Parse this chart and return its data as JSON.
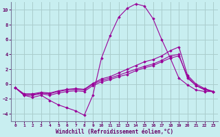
{
  "xlabel": "Windchill (Refroidissement éolien,°C)",
  "background_color": "#c8eef0",
  "grid_color": "#aacccc",
  "line_color": "#990099",
  "xlim": [
    -0.5,
    23.5
  ],
  "ylim": [
    -5,
    11
  ],
  "yticks": [
    -4,
    -2,
    0,
    2,
    4,
    6,
    8,
    10
  ],
  "xticks": [
    0,
    1,
    2,
    3,
    4,
    5,
    6,
    7,
    8,
    9,
    10,
    11,
    12,
    13,
    14,
    15,
    16,
    17,
    18,
    19,
    20,
    21,
    22,
    23
  ],
  "series": [
    {
      "x": [
        0,
        1,
        2,
        3,
        4,
        5,
        6,
        7,
        8,
        9,
        10,
        11,
        12,
        13,
        14,
        15,
        16,
        17,
        18,
        19,
        20,
        21,
        22,
        23
      ],
      "y": [
        -0.5,
        -1.5,
        -1.8,
        -1.5,
        -2.2,
        -2.8,
        -3.2,
        -3.6,
        -4.2,
        -1.5,
        3.5,
        6.5,
        9.0,
        10.2,
        10.8,
        10.5,
        8.8,
        6.0,
        3.5,
        0.8,
        -0.1,
        -0.8,
        -1.0,
        -1.0
      ]
    },
    {
      "x": [
        0,
        1,
        2,
        3,
        4,
        5,
        6,
        7,
        8,
        9,
        10,
        11,
        12,
        13,
        14,
        15,
        16,
        17,
        18,
        19,
        20,
        21,
        22,
        23
      ],
      "y": [
        -0.5,
        -1.5,
        -1.5,
        -1.3,
        -1.5,
        -1.2,
        -1.0,
        -0.9,
        -1.0,
        -0.2,
        0.3,
        0.6,
        1.0,
        1.3,
        1.8,
        2.2,
        2.5,
        3.0,
        3.5,
        3.8,
        1.0,
        -0.2,
        -0.8,
        -1.0
      ]
    },
    {
      "x": [
        0,
        1,
        2,
        3,
        4,
        5,
        6,
        7,
        8,
        9,
        10,
        11,
        12,
        13,
        14,
        15,
        16,
        17,
        18,
        19,
        20,
        21,
        22,
        23
      ],
      "y": [
        -0.5,
        -1.4,
        -1.4,
        -1.2,
        -1.3,
        -1.0,
        -0.8,
        -0.7,
        -0.8,
        0.0,
        0.5,
        0.8,
        1.2,
        1.6,
        2.0,
        2.4,
        2.7,
        3.2,
        3.8,
        4.0,
        0.8,
        -0.2,
        -0.7,
        -1.0
      ]
    },
    {
      "x": [
        0,
        1,
        2,
        3,
        4,
        5,
        6,
        7,
        8,
        9,
        10,
        11,
        12,
        13,
        14,
        15,
        16,
        17,
        18,
        19,
        20,
        21,
        22,
        23
      ],
      "y": [
        -0.5,
        -1.3,
        -1.3,
        -1.1,
        -1.2,
        -0.9,
        -0.7,
        -0.6,
        -0.7,
        0.1,
        0.7,
        1.0,
        1.5,
        2.0,
        2.5,
        3.0,
        3.3,
        3.8,
        4.5,
        5.0,
        1.2,
        0.0,
        -0.6,
        -1.0
      ]
    }
  ]
}
